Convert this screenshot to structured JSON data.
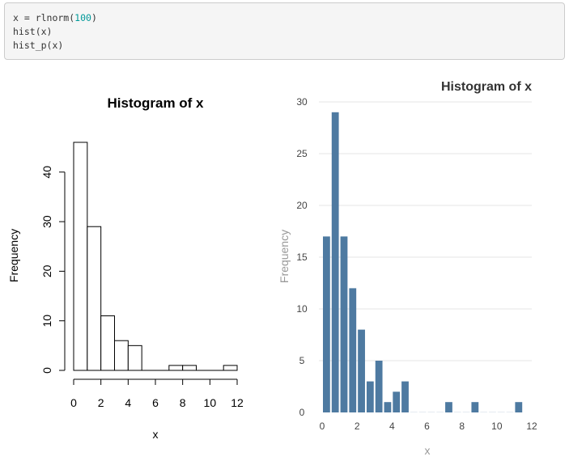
{
  "code": {
    "line1_prefix": "x = rlnorm(",
    "line1_num": "100",
    "line1_suffix": ")",
    "line2": "hist(x)",
    "line3": "hist_p(x)"
  },
  "chart_data": [
    {
      "type": "bar",
      "style": "base-r-histogram",
      "title": "Histogram of x",
      "xlabel": "x",
      "ylabel": "Frequency",
      "bin_edges": [
        0,
        1,
        2,
        3,
        4,
        5,
        6,
        7,
        8,
        9,
        10,
        11,
        12
      ],
      "values": [
        46,
        29,
        11,
        6,
        5,
        0,
        0,
        1,
        1,
        0,
        0,
        1
      ],
      "xlim": [
        0,
        12
      ],
      "ylim": [
        0,
        46
      ],
      "x_ticks": [
        0,
        2,
        4,
        6,
        8,
        10,
        12
      ],
      "y_ticks": [
        0,
        10,
        20,
        30,
        40
      ],
      "grid": false,
      "bar_fill": "#ffffff",
      "bar_stroke": "#000000"
    },
    {
      "type": "bar",
      "style": "hist_p",
      "title": "Histogram of x",
      "xlabel": "x",
      "ylabel": "Frequency",
      "bin_edges": [
        0,
        0.5,
        1,
        1.5,
        2,
        2.5,
        3,
        3.5,
        4,
        4.5,
        5,
        5.5,
        6,
        6.5,
        7,
        7.5,
        8,
        8.5,
        9,
        9.5,
        10,
        10.5,
        11,
        11.5
      ],
      "values": [
        17,
        29,
        17,
        12,
        8,
        3,
        5,
        1,
        2,
        3,
        0,
        0,
        0,
        0,
        1,
        0,
        0,
        1,
        0,
        0,
        0,
        0,
        1
      ],
      "xlim": [
        0,
        12
      ],
      "ylim": [
        0,
        30
      ],
      "x_ticks": [
        0,
        2,
        4,
        6,
        8,
        10,
        12
      ],
      "y_ticks": [
        0,
        5,
        10,
        15,
        20,
        25,
        30
      ],
      "grid": true,
      "bar_fill": "#4e7aa1",
      "grid_color": "#e6e6e6"
    }
  ]
}
